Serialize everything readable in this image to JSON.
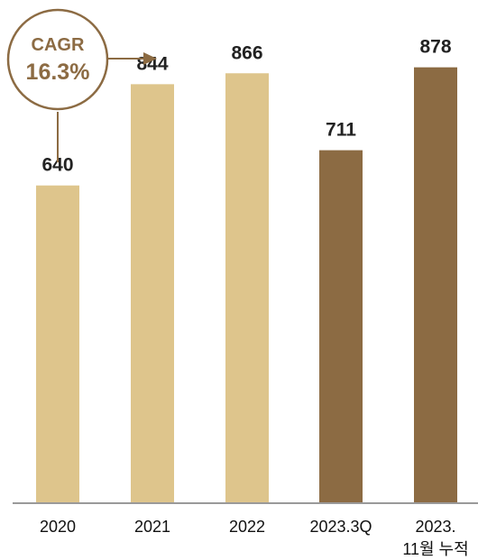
{
  "chart_data": {
    "type": "bar",
    "categories": [
      [
        "2020"
      ],
      [
        "2021"
      ],
      [
        "2022"
      ],
      [
        "2023.3Q"
      ],
      [
        "2023.",
        "11월 누적"
      ]
    ],
    "values": [
      640,
      844,
      866,
      711,
      878
    ],
    "value_labels": [
      "640",
      "844",
      "866",
      "711",
      "878"
    ],
    "title": "",
    "xlabel": "",
    "ylabel": "",
    "ylim": [
      0,
      970
    ],
    "grid": false,
    "legend": "none",
    "annotation": {
      "title": "CAGR",
      "value": "16.3%"
    }
  },
  "colors": {
    "light_bar": "#dec58c",
    "dark_bar": "#8c6b43",
    "annotation": "#8c6b43",
    "baseline": "#9a9a9a"
  },
  "bar_color_keys": [
    "light_bar",
    "light_bar",
    "light_bar",
    "dark_bar",
    "dark_bar"
  ]
}
